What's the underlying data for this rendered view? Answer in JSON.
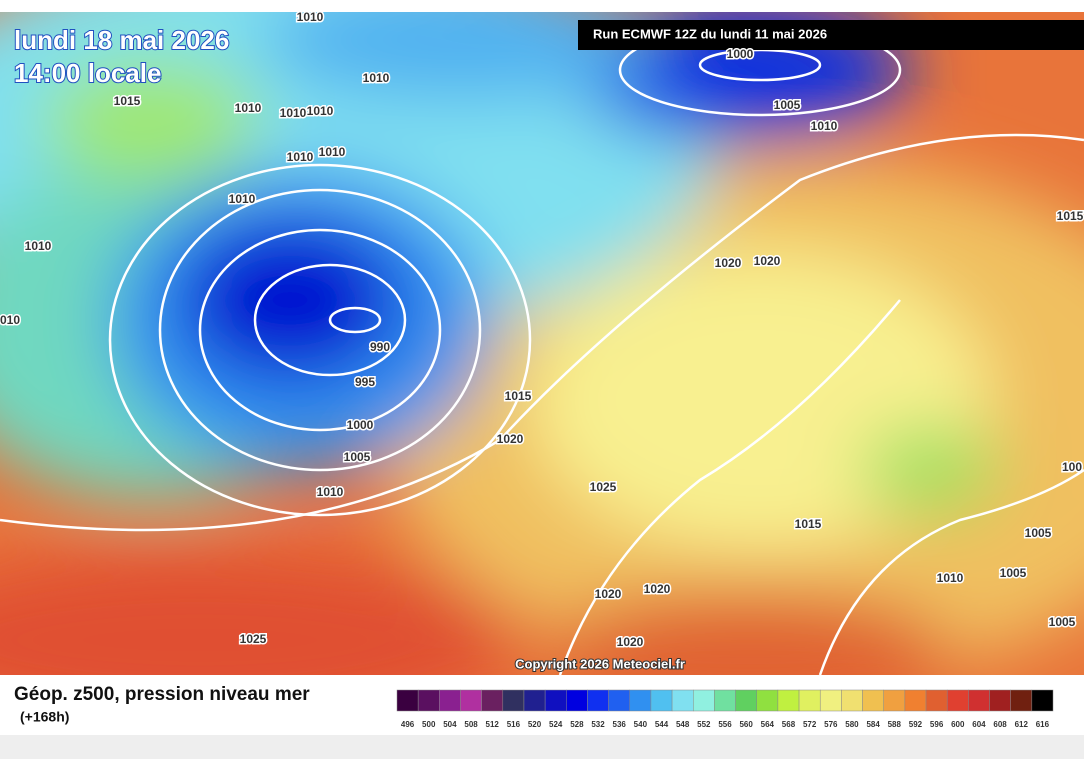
{
  "header": {
    "date": "lundi 18 mai 2026",
    "time": "14:00 locale",
    "run": "Run ECMWF 12Z du lundi 11 mai 2026"
  },
  "isobars": [
    "1010",
    "1010",
    "1015",
    "1010",
    "1010",
    "1010",
    "1010",
    "1010",
    "1010",
    "1010",
    "010",
    "990",
    "995",
    "1000",
    "1005",
    "1010",
    "1015",
    "1020",
    "1025",
    "1015",
    "1020",
    "1020",
    "1020",
    "1025",
    "1000",
    "1005",
    "1010",
    "1020",
    "1020",
    "1015",
    "1005",
    "1010",
    "1005",
    "1005",
    "100"
  ],
  "copyright": "Copyright 2026 Meteociel.fr",
  "footer": {
    "title": "Géop. z500, pression niveau mer",
    "lead": "(+168h)"
  },
  "scale": {
    "labels": [
      496,
      500,
      504,
      508,
      512,
      516,
      520,
      524,
      528,
      532,
      536,
      540,
      544,
      548,
      552,
      556,
      560,
      564,
      568,
      572,
      576,
      580,
      584,
      588,
      592,
      596,
      600,
      604,
      608,
      612,
      616
    ],
    "colors": [
      "#3a0040",
      "#5a1060",
      "#8a2090",
      "#b030a0",
      "#6a2060",
      "#303060",
      "#202090",
      "#1010c0",
      "#0000e0",
      "#1030f0",
      "#2060f0",
      "#3090f0",
      "#50c0f0",
      "#80e0f0",
      "#90f0e0",
      "#70e0a0",
      "#60d060",
      "#90e040",
      "#c0f040",
      "#e0f060",
      "#f0f080",
      "#f0e070",
      "#f0c050",
      "#f0a040",
      "#f08030",
      "#e06030",
      "#e04030",
      "#d03030",
      "#a02020",
      "#702010",
      "#000000"
    ]
  }
}
